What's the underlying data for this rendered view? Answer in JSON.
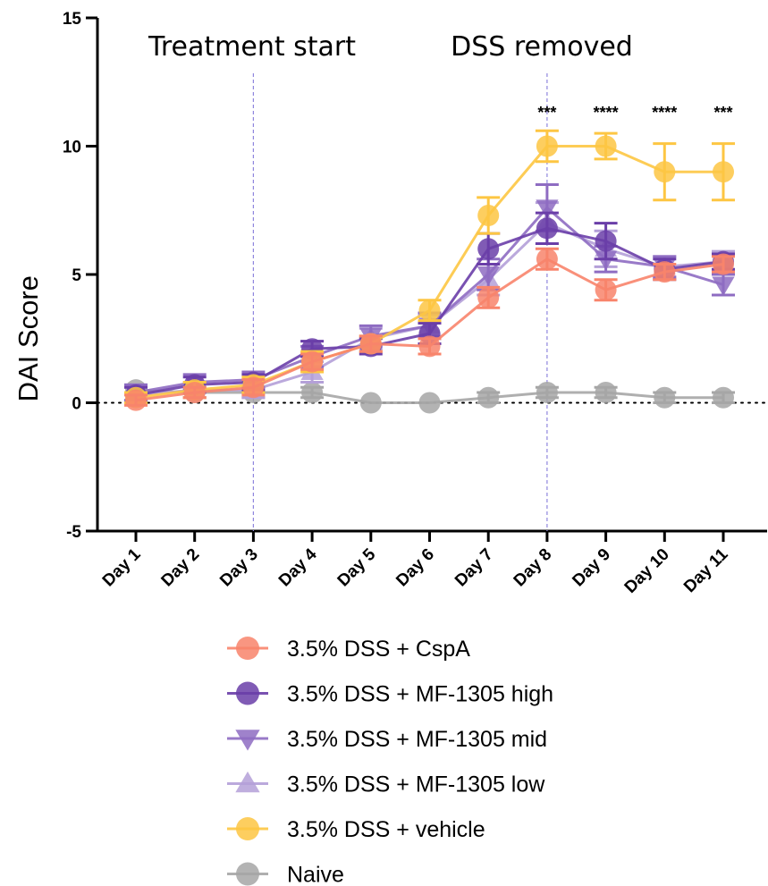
{
  "chart_data": {
    "type": "line",
    "ylabel": "DAI Score",
    "xlabel": "",
    "categories": [
      "Day 1",
      "Day 2",
      "Day 3",
      "Day 4",
      "Day 5",
      "Day 6",
      "Day 7",
      "Day 8",
      "Day 9",
      "Day 10",
      "Day 11"
    ],
    "ylim": [
      -5,
      15
    ],
    "yticks": [
      -5,
      0,
      5,
      10,
      15
    ],
    "yticks_labels": [
      "-5",
      "0",
      "5",
      "10",
      "15"
    ],
    "reference_line_y": 0,
    "vertical_markers": [
      {
        "at": "Day 3",
        "label": "Treatment start"
      },
      {
        "at": "Day 8",
        "label": "DSS removed"
      }
    ],
    "significance": [
      {
        "at": "Day 8",
        "label": "***"
      },
      {
        "at": "Day 9",
        "label": "****"
      },
      {
        "at": "Day 10",
        "label": "****"
      },
      {
        "at": "Day 11",
        "label": "***"
      }
    ],
    "series": [
      {
        "name": "Naive",
        "color": "#a6a6a6",
        "marker": "circle",
        "values": [
          0.5,
          0.4,
          0.4,
          0.4,
          0.0,
          0.0,
          0.2,
          0.4,
          0.4,
          0.2,
          0.2
        ],
        "errors": [
          0.2,
          0.2,
          0.2,
          0.2,
          0.0,
          0.0,
          0.2,
          0.2,
          0.2,
          0.2,
          0.2
        ]
      },
      {
        "name": "3.5% DSS + MF-1305 low",
        "color": "#b4a0d8",
        "marker": "triangle-up",
        "values": [
          0.3,
          0.5,
          0.5,
          1.2,
          2.5,
          3.0,
          4.8,
          7.0,
          6.0,
          5.3,
          5.5
        ],
        "errors": [
          0.3,
          0.3,
          0.3,
          0.4,
          0.4,
          0.4,
          0.6,
          0.8,
          0.7,
          0.4,
          0.4
        ]
      },
      {
        "name": "3.5% DSS + MF-1305 mid",
        "color": "#8e6cc2",
        "marker": "triangle-down",
        "values": [
          0.4,
          0.8,
          0.9,
          1.8,
          2.6,
          3.0,
          5.0,
          7.6,
          5.6,
          5.3,
          4.6
        ],
        "errors": [
          0.3,
          0.3,
          0.3,
          0.4,
          0.4,
          0.5,
          0.6,
          0.9,
          0.5,
          0.4,
          0.4
        ]
      },
      {
        "name": "3.5% DSS + MF-1305 high",
        "color": "#6a3ea8",
        "marker": "circle",
        "values": [
          0.3,
          0.7,
          0.8,
          2.1,
          2.2,
          2.7,
          6.0,
          6.8,
          6.3,
          5.2,
          5.5
        ],
        "errors": [
          0.3,
          0.3,
          0.3,
          0.3,
          0.3,
          0.4,
          0.6,
          0.6,
          0.7,
          0.4,
          0.3
        ]
      },
      {
        "name": "3.5% DSS + vehicle",
        "color": "#fdc643",
        "marker": "circle",
        "values": [
          0.2,
          0.5,
          0.7,
          1.6,
          2.3,
          3.6,
          7.3,
          10.0,
          10.0,
          9.0,
          9.0
        ],
        "errors": [
          0.2,
          0.3,
          0.3,
          0.4,
          0.3,
          0.4,
          0.7,
          0.6,
          0.5,
          1.1,
          1.1
        ]
      },
      {
        "name": "3.5% DSS + CspA",
        "color": "#f8846b",
        "marker": "circle",
        "values": [
          0.1,
          0.4,
          0.6,
          1.6,
          2.3,
          2.2,
          4.1,
          5.6,
          4.4,
          5.1,
          5.4
        ],
        "errors": [
          0.2,
          0.2,
          0.3,
          0.3,
          0.3,
          0.3,
          0.4,
          0.4,
          0.4,
          0.3,
          0.3
        ]
      }
    ],
    "legend_order": [
      "3.5% DSS + CspA",
      "3.5% DSS + MF-1305 high",
      "3.5% DSS + MF-1305 mid",
      "3.5% DSS + MF-1305 low",
      "3.5% DSS + vehicle",
      "Naive"
    ],
    "legend_placement": "bottom",
    "grid": false
  }
}
